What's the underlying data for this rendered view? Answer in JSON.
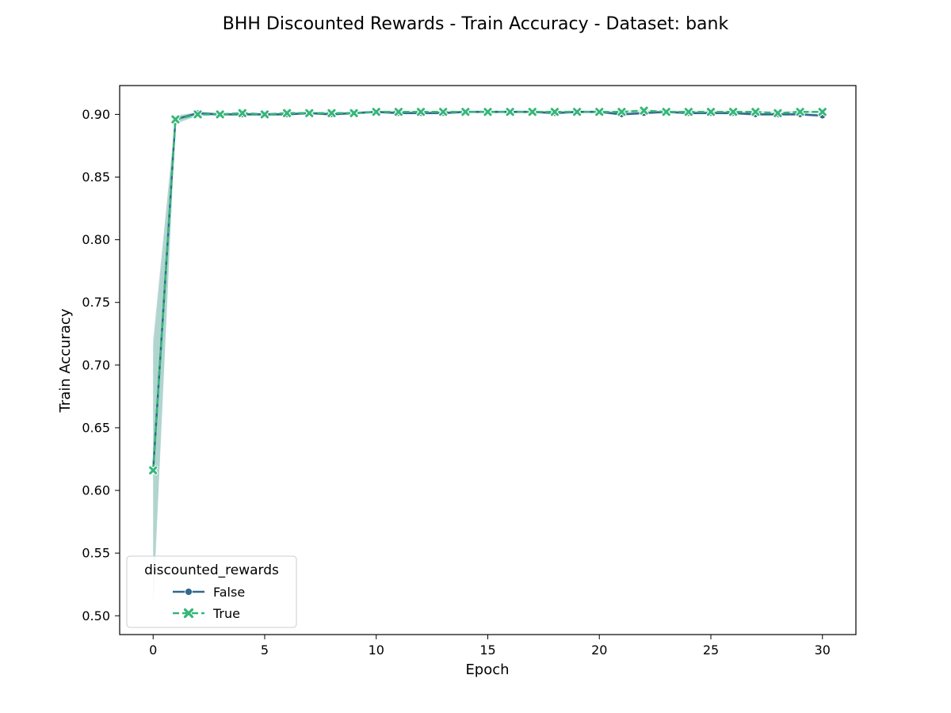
{
  "chart_data": {
    "type": "line",
    "title": "BHH Discounted Rewards - Train Accuracy - Dataset: bank",
    "xlabel": "Epoch",
    "ylabel": "Train Accuracy",
    "xlim": [
      -1.5,
      31.5
    ],
    "ylim": [
      0.485,
      0.923
    ],
    "xticks": [
      "0",
      "5",
      "10",
      "15",
      "20",
      "25",
      "30"
    ],
    "yticks": [
      "0.50",
      "0.55",
      "0.60",
      "0.65",
      "0.70",
      "0.75",
      "0.80",
      "0.85",
      "0.90"
    ],
    "grid": false,
    "legend": {
      "title": "discounted_rewards",
      "placement": "lower-left"
    },
    "x": [
      0,
      1,
      2,
      3,
      4,
      5,
      6,
      7,
      8,
      9,
      10,
      11,
      12,
      13,
      14,
      15,
      16,
      17,
      18,
      19,
      20,
      21,
      22,
      23,
      24,
      25,
      26,
      27,
      28,
      29,
      30
    ],
    "series": [
      {
        "name": "False",
        "color": "#31688e",
        "marker": "circle",
        "linestyle": "solid",
        "values": [
          0.616,
          0.896,
          0.901,
          0.9,
          0.9,
          0.9,
          0.9,
          0.901,
          0.9,
          0.901,
          0.902,
          0.901,
          0.901,
          0.901,
          0.902,
          0.902,
          0.902,
          0.902,
          0.901,
          0.902,
          0.902,
          0.9,
          0.901,
          0.902,
          0.901,
          0.901,
          0.901,
          0.9,
          0.9,
          0.9,
          0.899
        ],
        "band_lower": [
          0.505,
          0.893,
          0.899,
          0.899,
          0.899,
          0.899,
          0.899,
          0.9,
          0.899,
          0.9,
          0.901,
          0.9,
          0.9,
          0.9,
          0.901,
          0.901,
          0.901,
          0.901,
          0.9,
          0.901,
          0.901,
          0.899,
          0.9,
          0.901,
          0.9,
          0.9,
          0.9,
          0.899,
          0.899,
          0.899,
          0.898
        ],
        "band_upper": [
          0.72,
          0.899,
          0.902,
          0.901,
          0.901,
          0.901,
          0.901,
          0.902,
          0.901,
          0.902,
          0.903,
          0.902,
          0.902,
          0.902,
          0.903,
          0.903,
          0.903,
          0.903,
          0.902,
          0.903,
          0.903,
          0.901,
          0.902,
          0.903,
          0.902,
          0.902,
          0.902,
          0.901,
          0.901,
          0.901,
          0.9
        ]
      },
      {
        "name": "True",
        "color": "#35b779",
        "marker": "x",
        "linestyle": "dashed",
        "values": [
          0.616,
          0.896,
          0.9,
          0.9,
          0.901,
          0.9,
          0.901,
          0.901,
          0.901,
          0.901,
          0.902,
          0.902,
          0.902,
          0.902,
          0.902,
          0.902,
          0.902,
          0.902,
          0.902,
          0.902,
          0.902,
          0.902,
          0.903,
          0.902,
          0.902,
          0.902,
          0.902,
          0.902,
          0.901,
          0.902,
          0.902
        ],
        "band_lower": [
          0.51,
          0.892,
          0.899,
          0.899,
          0.9,
          0.899,
          0.9,
          0.9,
          0.9,
          0.9,
          0.901,
          0.901,
          0.901,
          0.901,
          0.901,
          0.901,
          0.901,
          0.901,
          0.901,
          0.901,
          0.901,
          0.901,
          0.902,
          0.901,
          0.901,
          0.901,
          0.901,
          0.901,
          0.9,
          0.901,
          0.901
        ],
        "band_upper": [
          0.715,
          0.899,
          0.901,
          0.901,
          0.902,
          0.901,
          0.902,
          0.902,
          0.902,
          0.902,
          0.903,
          0.903,
          0.903,
          0.903,
          0.903,
          0.903,
          0.903,
          0.903,
          0.903,
          0.903,
          0.903,
          0.903,
          0.904,
          0.903,
          0.903,
          0.903,
          0.903,
          0.903,
          0.902,
          0.903,
          0.903
        ]
      }
    ]
  }
}
